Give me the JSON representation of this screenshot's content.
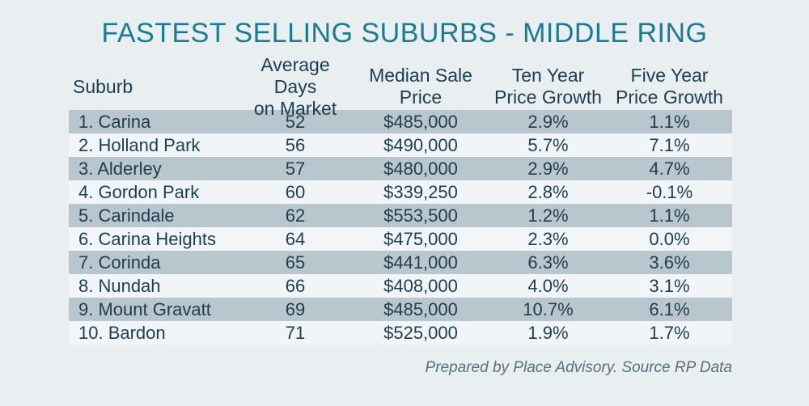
{
  "title": "FASTEST SELLING SUBURBS - MIDDLE RING",
  "colors": {
    "background": "#e9eef1",
    "title_text": "#1a7b92",
    "body_text": "#1d3e51",
    "row_shaded": "#b9c6cd",
    "row_light": "#f2f5f7",
    "footer_text": "#55717f"
  },
  "table": {
    "columns": [
      "Suburb",
      "Average Days\non Market",
      "Median Sale\nPrice",
      "Ten Year\nPrice Growth",
      "Five Year\nPrice Growth"
    ],
    "rows": [
      [
        "1. Carina",
        "52",
        "$485,000",
        "2.9%",
        "1.1%"
      ],
      [
        "2. Holland Park",
        "56",
        "$490,000",
        "5.7%",
        "7.1%"
      ],
      [
        "3. Alderley",
        "57",
        "$480,000",
        "2.9%",
        "4.7%"
      ],
      [
        "4. Gordon Park",
        "60",
        "$339,250",
        "2.8%",
        "-0.1%"
      ],
      [
        "5. Carindale",
        "62",
        "$553,500",
        "1.2%",
        "1.1%"
      ],
      [
        "6. Carina Heights",
        "64",
        "$475,000",
        "2.3%",
        "0.0%"
      ],
      [
        "7. Corinda",
        "65",
        "$441,000",
        "6.3%",
        "3.6%"
      ],
      [
        "8. Nundah",
        "66",
        "$408,000",
        "4.0%",
        "3.1%"
      ],
      [
        "9. Mount Gravatt",
        "69",
        "$485,000",
        "10.7%",
        "6.1%"
      ],
      [
        "10. Bardon",
        "71",
        "$525,000",
        "1.9%",
        "1.7%"
      ]
    ]
  },
  "footer": {
    "credit": "Prepared by Place Advisory. Source RP Data"
  },
  "chart_data": {
    "type": "table",
    "title": "FASTEST SELLING SUBURBS - MIDDLE RING",
    "columns": [
      "Suburb",
      "Average Days on Market",
      "Median Sale Price",
      "Ten Year Price Growth",
      "Five Year Price Growth"
    ],
    "rows": [
      {
        "rank": 1,
        "suburb": "Carina",
        "average_days_on_market": 52,
        "median_sale_price": 485000,
        "ten_year_price_growth_pct": 2.9,
        "five_year_price_growth_pct": 1.1
      },
      {
        "rank": 2,
        "suburb": "Holland Park",
        "average_days_on_market": 56,
        "median_sale_price": 490000,
        "ten_year_price_growth_pct": 5.7,
        "five_year_price_growth_pct": 7.1
      },
      {
        "rank": 3,
        "suburb": "Alderley",
        "average_days_on_market": 57,
        "median_sale_price": 480000,
        "ten_year_price_growth_pct": 2.9,
        "five_year_price_growth_pct": 4.7
      },
      {
        "rank": 4,
        "suburb": "Gordon Park",
        "average_days_on_market": 60,
        "median_sale_price": 339250,
        "ten_year_price_growth_pct": 2.8,
        "five_year_price_growth_pct": -0.1
      },
      {
        "rank": 5,
        "suburb": "Carindale",
        "average_days_on_market": 62,
        "median_sale_price": 553500,
        "ten_year_price_growth_pct": 1.2,
        "five_year_price_growth_pct": 1.1
      },
      {
        "rank": 6,
        "suburb": "Carina Heights",
        "average_days_on_market": 64,
        "median_sale_price": 475000,
        "ten_year_price_growth_pct": 2.3,
        "five_year_price_growth_pct": 0.0
      },
      {
        "rank": 7,
        "suburb": "Corinda",
        "average_days_on_market": 65,
        "median_sale_price": 441000,
        "ten_year_price_growth_pct": 6.3,
        "five_year_price_growth_pct": 3.6
      },
      {
        "rank": 8,
        "suburb": "Nundah",
        "average_days_on_market": 66,
        "median_sale_price": 408000,
        "ten_year_price_growth_pct": 4.0,
        "five_year_price_growth_pct": 3.1
      },
      {
        "rank": 9,
        "suburb": "Mount Gravatt",
        "average_days_on_market": 69,
        "median_sale_price": 485000,
        "ten_year_price_growth_pct": 10.7,
        "five_year_price_growth_pct": 6.1
      },
      {
        "rank": 10,
        "suburb": "Bardon",
        "average_days_on_market": 71,
        "median_sale_price": 525000,
        "ten_year_price_growth_pct": 1.9,
        "five_year_price_growth_pct": 1.7
      }
    ]
  }
}
